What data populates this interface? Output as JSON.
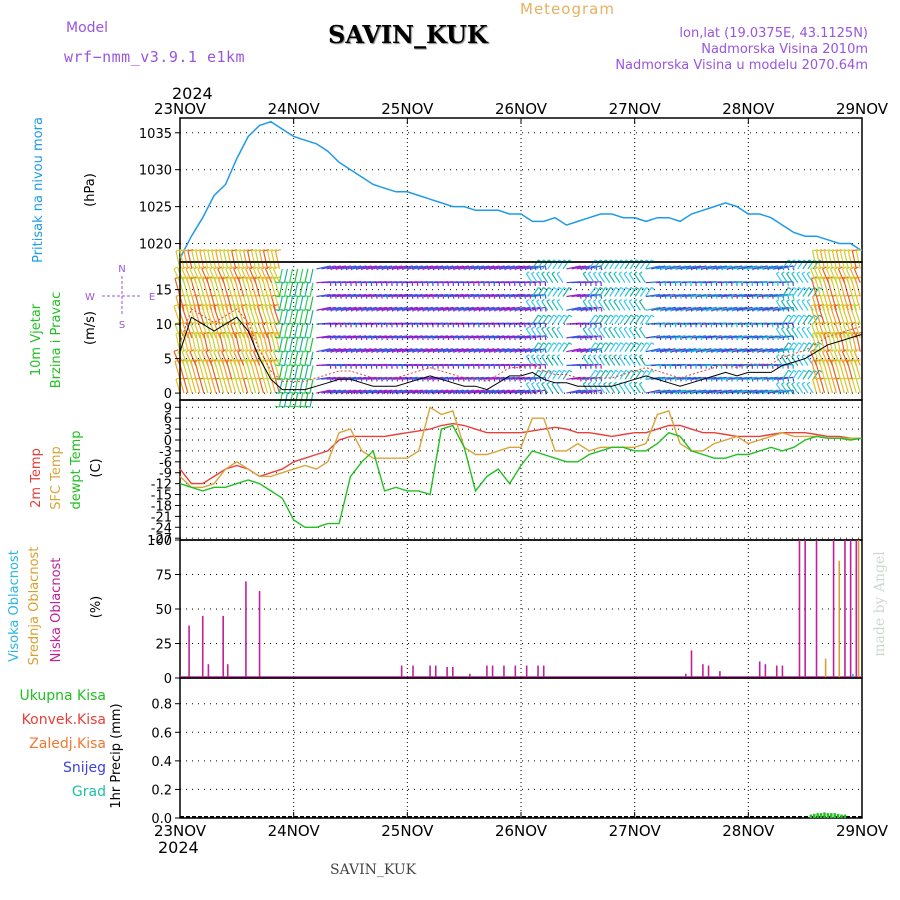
{
  "header": {
    "model_label": "Model",
    "model_name": "wrf−nmm_v3.9.1 e1km",
    "station": "SAVIN_KUK",
    "product": "Meteogram",
    "lonlat": "lon,lat (19.0375E, 43.1125N)",
    "elevation": "Nadmorska Visina 2010m",
    "elevation_model": "Nadmorska Visina u modelu 2070.64m",
    "footer_station": "SAVIN_KUK",
    "year": "2024",
    "credit": "made by Angel"
  },
  "colors": {
    "pressure": "#1e9be8",
    "temp2m": "#e8403a",
    "sfc": "#d7a53c",
    "dewpt": "#22c022",
    "high_cloud": "#29b6e0",
    "mid_cloud": "#d8a030",
    "low_cloud": "#c0209a",
    "rain": "#22c022",
    "conv": "#e8403a",
    "frz": "#f07830",
    "snow": "#4040e0",
    "hail": "#20c0a0",
    "wind_label": "#22c022",
    "axis_label": "#1e9be8"
  },
  "chart_data": [
    {
      "type": "line",
      "panel": "pressure",
      "ylabel_lines": [
        "Pritisak na nivou mora",
        "(hPa)"
      ],
      "yticks": [
        1020,
        1025,
        1030,
        1035
      ],
      "ylim": [
        1017.5,
        1037
      ],
      "x_day": [
        0,
        0.05,
        0.1,
        0.2,
        0.3,
        0.4,
        0.5,
        0.6,
        0.7,
        0.8,
        0.9,
        1.0,
        1.1,
        1.2,
        1.3,
        1.4,
        1.5,
        1.6,
        1.7,
        1.8,
        1.9,
        2.0,
        2.1,
        2.2,
        2.3,
        2.4,
        2.5,
        2.6,
        2.7,
        2.8,
        2.9,
        3.0,
        3.1,
        3.2,
        3.3,
        3.4,
        3.5,
        3.6,
        3.7,
        3.8,
        3.9,
        4.0,
        4.1,
        4.2,
        4.3,
        4.4,
        4.5,
        4.6,
        4.7,
        4.8,
        4.9,
        5.0,
        5.1,
        5.2,
        5.3,
        5.4,
        5.5,
        5.6,
        5.7,
        5.8,
        5.9,
        6.0
      ],
      "values": [
        1018.0,
        1019.5,
        1021.0,
        1023.5,
        1026.5,
        1028.0,
        1031.5,
        1034.5,
        1036.0,
        1036.5,
        1035.5,
        1034.5,
        1034.0,
        1033.5,
        1032.5,
        1031.0,
        1030.0,
        1029.0,
        1028.0,
        1027.5,
        1027.0,
        1027.0,
        1026.5,
        1026.0,
        1025.5,
        1025.0,
        1025.0,
        1024.5,
        1024.5,
        1024.5,
        1024.0,
        1024.0,
        1023.0,
        1023.0,
        1023.5,
        1022.5,
        1023.0,
        1023.5,
        1024.0,
        1024.0,
        1023.5,
        1023.5,
        1023.0,
        1023.5,
        1023.5,
        1023.0,
        1024.0,
        1024.5,
        1025.0,
        1025.5,
        1025.0,
        1024.0,
        1024.0,
        1023.5,
        1022.5,
        1021.5,
        1021.0,
        1021.0,
        1020.5,
        1020.0,
        1020.0,
        1019.0
      ],
      "series": [
        {
          "name": "Pritisak na nivou mora",
          "color_key": "pressure"
        }
      ]
    },
    {
      "type": "line",
      "panel": "wind",
      "ylabel_lines": [
        "10m Vjetar",
        "Brzina i Pravac",
        "(m/s)"
      ],
      "compass": [
        "N",
        "E",
        "W",
        "S"
      ],
      "yticks": [
        0,
        5,
        10,
        15
      ],
      "ylim": [
        -1,
        19
      ],
      "x_day": [
        0,
        0.1,
        0.2,
        0.3,
        0.4,
        0.5,
        0.6,
        0.7,
        0.8,
        0.9,
        1.0,
        1.1,
        1.2,
        1.3,
        1.4,
        1.5,
        1.6,
        1.7,
        1.8,
        1.9,
        2.0,
        2.1,
        2.2,
        2.3,
        2.4,
        2.5,
        2.6,
        2.7,
        2.8,
        2.9,
        3.0,
        3.1,
        3.2,
        3.3,
        3.4,
        3.5,
        3.6,
        3.7,
        3.8,
        3.9,
        4.0,
        4.1,
        4.2,
        4.3,
        4.4,
        4.5,
        4.6,
        4.7,
        4.8,
        4.9,
        5.0,
        5.1,
        5.2,
        5.3,
        5.4,
        5.5,
        5.6,
        5.7,
        5.8,
        5.9,
        6.0
      ],
      "values": [
        6,
        11,
        10,
        9,
        10,
        11,
        9,
        5,
        2,
        0.5,
        0.5,
        0.5,
        1,
        1.5,
        2,
        2,
        1.5,
        1,
        1,
        1,
        1.5,
        2,
        2.5,
        2,
        1.5,
        1,
        1,
        0.5,
        1.5,
        2.5,
        2.5,
        3,
        2,
        1.5,
        1.5,
        1,
        1,
        1,
        1,
        1.5,
        2,
        2.5,
        2,
        1.5,
        1,
        1.5,
        2,
        2.5,
        3,
        2.5,
        3,
        3,
        3,
        4,
        4.5,
        5,
        6,
        7,
        7.5,
        8,
        8.5
      ],
      "barb_rows": [
        0,
        2,
        4,
        6,
        8,
        10,
        12,
        14,
        16,
        18
      ],
      "regions": [
        {
          "from": 0.0,
          "to": 0.9,
          "style": "warm"
        },
        {
          "from": 0.9,
          "to": 1.2,
          "style": "green"
        },
        {
          "from": 1.2,
          "to": 3.1,
          "style": "purple"
        },
        {
          "from": 3.1,
          "to": 3.4,
          "style": "cyan"
        },
        {
          "from": 3.4,
          "to": 3.6,
          "style": "purple"
        },
        {
          "from": 3.6,
          "to": 4.1,
          "style": "cyan"
        },
        {
          "from": 4.1,
          "to": 5.3,
          "style": "blue"
        },
        {
          "from": 5.3,
          "to": 5.6,
          "style": "cyan"
        },
        {
          "from": 5.6,
          "to": 6.0,
          "style": "warm"
        }
      ]
    },
    {
      "type": "line",
      "panel": "temperature",
      "ylabel_lines": [
        "2m Temp",
        "SFC Temp",
        "dewpt Temp",
        "(C)"
      ],
      "yticks": [
        -27,
        -24,
        -21,
        -18,
        -15,
        -12,
        -9,
        -6,
        -3,
        0,
        3,
        6,
        9
      ],
      "ylim": [
        -27.5,
        11
      ],
      "x_day": [
        0,
        0.1,
        0.2,
        0.3,
        0.4,
        0.5,
        0.6,
        0.7,
        0.8,
        0.9,
        1.0,
        1.1,
        1.2,
        1.3,
        1.4,
        1.5,
        1.6,
        1.7,
        1.8,
        1.9,
        2.0,
        2.1,
        2.2,
        2.3,
        2.4,
        2.5,
        2.6,
        2.7,
        2.8,
        2.9,
        3.0,
        3.1,
        3.2,
        3.3,
        3.4,
        3.5,
        3.6,
        3.7,
        3.8,
        3.9,
        4.0,
        4.1,
        4.2,
        4.3,
        4.4,
        4.5,
        4.6,
        4.7,
        4.8,
        4.9,
        5.0,
        5.1,
        5.2,
        5.3,
        5.4,
        5.5,
        5.6,
        5.7,
        5.8,
        5.9,
        6.0
      ],
      "series": [
        {
          "name": "2m Temp",
          "color_key": "temp2m",
          "values": [
            -8,
            -12,
            -12,
            -10,
            -8,
            -7,
            -8,
            -10,
            -9,
            -8,
            -6,
            -5,
            -4,
            -3,
            0,
            1,
            1,
            1,
            1,
            1.5,
            2,
            2.5,
            3,
            4,
            4.5,
            4,
            3,
            2,
            2,
            2,
            2,
            2.5,
            3,
            3.5,
            3,
            2,
            2,
            1.5,
            1,
            1.5,
            2,
            2,
            3,
            4,
            4,
            3,
            2,
            2,
            1.5,
            1,
            1,
            1,
            1.5,
            2,
            2,
            2,
            1.5,
            1,
            1,
            0.5,
            0.5
          ]
        },
        {
          "name": "SFC Temp",
          "color_key": "sfc",
          "values": [
            -10,
            -13,
            -13,
            -12,
            -8,
            -6,
            -8,
            -10,
            -10,
            -9,
            -8,
            -7,
            -8,
            -6,
            2,
            3,
            -3,
            -5,
            -5,
            -5,
            -5,
            -3,
            9,
            7,
            8,
            -2,
            -4,
            -4,
            -3,
            -2,
            -2,
            6,
            6,
            -3,
            -3,
            -1,
            -3,
            -2,
            -2,
            -2,
            -2,
            -1,
            7,
            8,
            -1,
            -3,
            -3,
            -1,
            0,
            1,
            -1,
            0,
            1,
            2,
            1,
            1,
            1,
            0.5,
            0.5,
            0.5,
            0.5
          ]
        },
        {
          "name": "dewpt Temp",
          "color_key": "dewpt",
          "values": [
            -12,
            -13,
            -14,
            -13,
            -13,
            -12,
            -11,
            -12,
            -14,
            -16,
            -22,
            -24,
            -24,
            -23,
            -23,
            -10,
            -6,
            -3,
            -14,
            -13,
            -14,
            -14,
            -15,
            3,
            4,
            -2,
            -14,
            -10,
            -8,
            -12,
            -7,
            -3,
            -4,
            -5,
            -6,
            -6,
            -4,
            -3,
            -2,
            -2,
            -3,
            -3,
            -1,
            2,
            1,
            -3,
            -4,
            -5,
            -5,
            -4,
            -4,
            -3,
            -2,
            -3,
            -2,
            0,
            1,
            0.5,
            0.5,
            0,
            0.5
          ]
        }
      ]
    },
    {
      "type": "bar",
      "panel": "clouds",
      "ylabel_lines": [
        "Visoka Oblacnost",
        "Srednja Oblacnost",
        "Niska Oblacnost",
        "(%)"
      ],
      "yticks": [
        0,
        25,
        50,
        75,
        100
      ],
      "ylim": [
        0,
        100
      ],
      "series": [
        {
          "name": "Niska Oblacnost",
          "color_key": "low_cloud",
          "x_day": [
            0.08,
            0.2,
            0.25,
            0.38,
            0.42,
            0.58,
            0.7,
            1.95,
            2.05,
            2.2,
            2.25,
            2.35,
            2.4,
            2.55,
            2.7,
            2.75,
            2.85,
            2.95,
            3.05,
            3.15,
            3.2,
            4.45,
            4.5,
            4.6,
            4.65,
            4.75,
            4.85,
            5.1,
            5.15,
            5.25,
            5.3,
            5.45,
            5.5,
            5.6,
            5.75,
            5.85,
            5.9,
            5.95
          ],
          "values": [
            38,
            45,
            10,
            45,
            10,
            70,
            63,
            9,
            9,
            9,
            9,
            8,
            8,
            3,
            9,
            9,
            9,
            9,
            9,
            9,
            9,
            3,
            20,
            10,
            9,
            5,
            1,
            12,
            10,
            9,
            9,
            100,
            100,
            100,
            100,
            100,
            100,
            100
          ]
        },
        {
          "name": "Srednja Oblacnost",
          "color_key": "mid_cloud",
          "x_day": [
            5.68,
            5.8,
            5.97
          ],
          "values": [
            14,
            85,
            100
          ]
        },
        {
          "name": "Visoka Oblacnost",
          "color_key": "high_cloud",
          "x_day": [
            5.92
          ],
          "values": [
            3
          ]
        }
      ]
    },
    {
      "type": "bar",
      "panel": "precip",
      "ylabel_lines": [
        "1hr Precip (mm)"
      ],
      "yticks": [
        0,
        0.2,
        0.4,
        0.6,
        0.8
      ],
      "ylim": [
        0,
        0.98
      ],
      "legend": [
        "Ukupna Kisa",
        "Konvek.Kisa",
        "Zaledj.Kisa",
        "Snijeg",
        "Grad"
      ],
      "series": [
        {
          "name": "Ukupna Kisa",
          "color_key": "rain",
          "x_day": [
            5.55,
            5.58,
            5.61,
            5.64,
            5.67,
            5.7,
            5.73,
            5.76,
            5.79,
            5.82,
            5.85
          ],
          "values": [
            0.01,
            0.015,
            0.02,
            0.02,
            0.025,
            0.02,
            0.02,
            0.02,
            0.015,
            0.01,
            0.01
          ]
        }
      ]
    }
  ],
  "x_axis": {
    "labels": [
      "23NOV",
      "24NOV",
      "25NOV",
      "26NOV",
      "27NOV",
      "28NOV",
      "29NOV"
    ],
    "days": 6
  }
}
